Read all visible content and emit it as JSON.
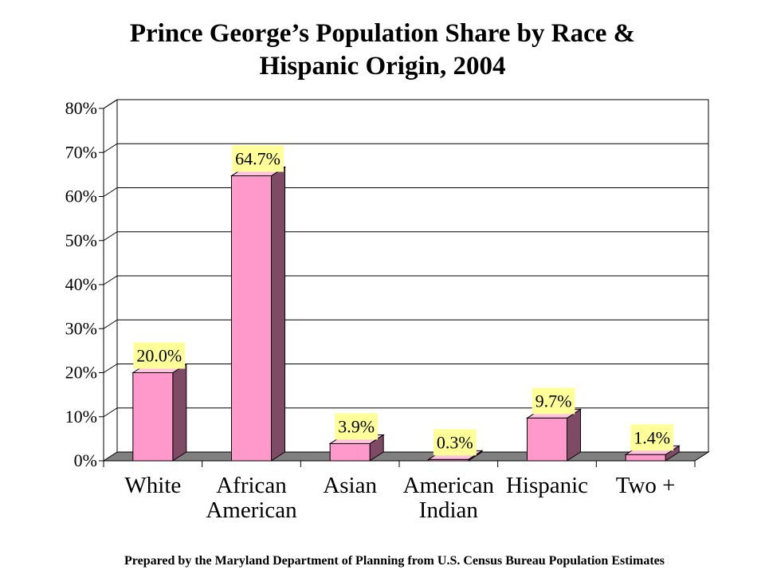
{
  "chart_data": {
    "type": "bar",
    "title_lines": [
      "Prince George’s Population Share by Race &",
      "Hispanic Origin, 2004"
    ],
    "categories": [
      [
        "White"
      ],
      [
        "African",
        "American"
      ],
      [
        "Asian"
      ],
      [
        "American",
        "Indian"
      ],
      [
        "Hispanic"
      ],
      [
        "Two +"
      ]
    ],
    "values": [
      20.0,
      64.7,
      3.9,
      0.3,
      9.7,
      1.4
    ],
    "data_labels": [
      "20.0%",
      "64.7%",
      "3.9%",
      "0.3%",
      "9.7%",
      "1.4%"
    ],
    "y_ticks": [
      "0%",
      "10%",
      "20%",
      "30%",
      "40%",
      "50%",
      "60%",
      "70%",
      "80%"
    ],
    "ylim": [
      0,
      80
    ],
    "grid": true,
    "colors": {
      "bar_front": "#ff99cc",
      "bar_side": "#7f4a66",
      "bar_top": "#ffc2e0",
      "floor": "#808080",
      "label_bg": "#ffff99"
    }
  },
  "footer": "Prepared by the Maryland Department of Planning from U.S. Census Bureau Population Estimates"
}
